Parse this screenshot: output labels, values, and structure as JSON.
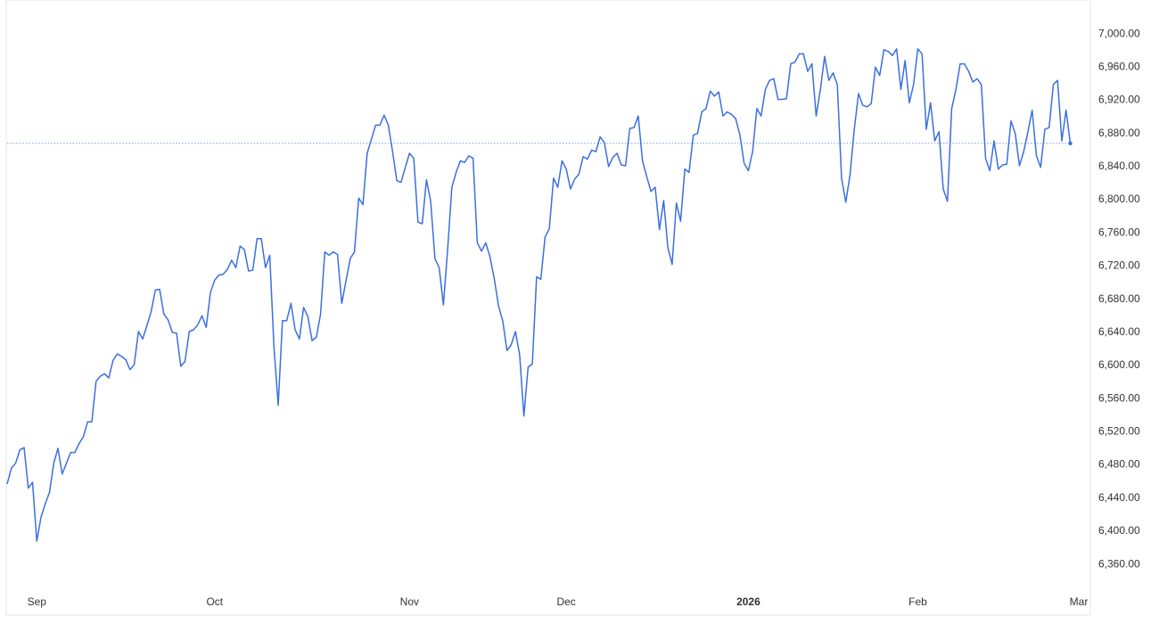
{
  "chart_data": {
    "type": "line",
    "categories": [
      null,
      null,
      null,
      null,
      null,
      null,
      null,
      "Sep",
      null,
      null,
      null,
      null,
      null,
      null,
      null,
      null,
      null,
      null,
      null,
      null,
      null,
      null,
      null,
      null,
      null,
      null,
      null,
      null,
      null,
      null,
      null,
      null,
      null,
      null,
      null,
      null,
      null,
      null,
      null,
      null,
      null,
      null,
      null,
      null,
      null,
      null,
      null,
      null,
      null,
      "Oct",
      null,
      null,
      null,
      null,
      null,
      null,
      null,
      null,
      null,
      null,
      null,
      null,
      null,
      null,
      null,
      null,
      null,
      null,
      null,
      null,
      null,
      null,
      null,
      null,
      null,
      null,
      null,
      null,
      null,
      null,
      null,
      null,
      null,
      null,
      null,
      null,
      null,
      null,
      null,
      null,
      null,
      null,
      null,
      null,
      null,
      "Nov",
      null,
      null,
      null,
      null,
      null,
      null,
      null,
      null,
      null,
      null,
      null,
      null,
      null,
      null,
      null,
      null,
      null,
      null,
      null,
      null,
      null,
      null,
      null,
      null,
      null,
      null,
      null,
      null,
      null,
      null,
      null,
      null,
      null,
      null,
      null,
      null,
      "Dec",
      null,
      null,
      null,
      null,
      null,
      null,
      null,
      null,
      null,
      null,
      null,
      null,
      null,
      null,
      null,
      null,
      null,
      null,
      null,
      null,
      null,
      null,
      null,
      null,
      null,
      null,
      null,
      null,
      null,
      null,
      null,
      null,
      null,
      null,
      null,
      null,
      null,
      null,
      null,
      null,
      null,
      null,
      "2026",
      null,
      null,
      null,
      null,
      null,
      null,
      null,
      null,
      null,
      null,
      null,
      null,
      null,
      null,
      null,
      null,
      null,
      null,
      null,
      null,
      null,
      null,
      null,
      null,
      null,
      null,
      null,
      null,
      null,
      null,
      null,
      null,
      null,
      null,
      null,
      null,
      null,
      null,
      null,
      "Feb",
      null,
      null,
      null,
      null,
      null,
      null,
      null,
      null,
      null,
      null,
      null,
      null,
      null,
      null,
      null,
      null,
      null,
      null,
      null,
      null,
      null,
      null,
      null,
      null,
      null,
      null,
      null,
      null,
      null,
      null,
      null,
      null,
      null,
      null,
      null,
      null,
      null,
      "Mar"
    ],
    "series": [
      {
        "color": "#3b6fe0",
        "values": [
          6457,
          6476,
          6482,
          6498,
          6501,
          6452,
          6459,
          6388,
          6417,
          6433,
          6447,
          6482,
          6500,
          6469,
          6482,
          6495,
          6495,
          6506,
          6514,
          6532,
          6532,
          6581,
          6587,
          6590,
          6585,
          6606,
          6614,
          6611,
          6607,
          6595,
          6601,
          6641,
          6632,
          6648,
          6665,
          6691,
          6692,
          6662,
          6655,
          6640,
          6639,
          6599,
          6605,
          6641,
          6643,
          6649,
          6660,
          6646,
          6688,
          6703,
          6709,
          6710,
          6716,
          6727,
          6718,
          6744,
          6740,
          6714,
          6715,
          6753,
          6753,
          6718,
          6733,
          6622,
          6552,
          6654,
          6654,
          6675,
          6643,
          6632,
          6670,
          6659,
          6630,
          6634,
          6662,
          6737,
          6733,
          6737,
          6734,
          6675,
          6702,
          6729,
          6737,
          6802,
          6794,
          6856,
          6873,
          6890,
          6890,
          6902,
          6890,
          6858,
          6823,
          6821,
          6839,
          6856,
          6850,
          6773,
          6771,
          6824,
          6798,
          6729,
          6718,
          6673,
          6740,
          6815,
          6833,
          6847,
          6845,
          6853,
          6850,
          6748,
          6738,
          6748,
          6731,
          6705,
          6672,
          6654,
          6618,
          6625,
          6641,
          6613,
          6539,
          6598,
          6602,
          6707,
          6704,
          6755,
          6765,
          6826,
          6815,
          6847,
          6837,
          6813,
          6825,
          6831,
          6852,
          6849,
          6860,
          6858,
          6876,
          6869,
          6840,
          6851,
          6856,
          6842,
          6841,
          6886,
          6887,
          6901,
          6847,
          6828,
          6810,
          6815,
          6764,
          6799,
          6742,
          6722,
          6796,
          6774,
          6837,
          6833,
          6878,
          6880,
          6906,
          6910,
          6931,
          6925,
          6930,
          6901,
          6906,
          6903,
          6898,
          6878,
          6844,
          6835,
          6858,
          6910,
          6901,
          6933,
          6944,
          6946,
          6921,
          6921,
          6922,
          6964,
          6966,
          6976,
          6976,
          6955,
          6964,
          6901,
          6933,
          6973,
          6944,
          6953,
          6939,
          6826,
          6797,
          6830,
          6885,
          6928,
          6914,
          6912,
          6916,
          6960,
          6950,
          6981,
          6979,
          6974,
          6982,
          6933,
          6968,
          6917,
          6939,
          6982,
          6976,
          6885,
          6917,
          6871,
          6882,
          6813,
          6798,
          6910,
          6933,
          6964,
          6964,
          6955,
          6942,
          6946,
          6939,
          6850,
          6835,
          6871,
          6837,
          6842,
          6843,
          6895,
          6880,
          6841,
          6858,
          6882,
          6908,
          6853,
          6839,
          6885,
          6887,
          6939,
          6944,
          6871,
          6908,
          6868,
          null,
          null
        ]
      }
    ],
    "ylim": [
      6330,
      7041
    ],
    "yticks": [
      {
        "value": 6360,
        "label": "6,360.00"
      },
      {
        "value": 6400,
        "label": "6,400.00"
      },
      {
        "value": 6440,
        "label": "6,440.00"
      },
      {
        "value": 6480,
        "label": "6,480.00"
      },
      {
        "value": 6520,
        "label": "6,520.00"
      },
      {
        "value": 6560,
        "label": "6,560.00"
      },
      {
        "value": 6600,
        "label": "6,600.00"
      },
      {
        "value": 6640,
        "label": "6,640.00"
      },
      {
        "value": 6680,
        "label": "6,680.00"
      },
      {
        "value": 6720,
        "label": "6,720.00"
      },
      {
        "value": 6760,
        "label": "6,760.00"
      },
      {
        "value": 6800,
        "label": "6,800.00"
      },
      {
        "value": 6840,
        "label": "6,840.00"
      },
      {
        "value": 6880,
        "label": "6,880.00"
      },
      {
        "value": 6920,
        "label": "6,920.00"
      },
      {
        "value": 6960,
        "label": "6,960.00"
      },
      {
        "value": 7000,
        "label": "7,000.00"
      }
    ],
    "grid": false
  }
}
